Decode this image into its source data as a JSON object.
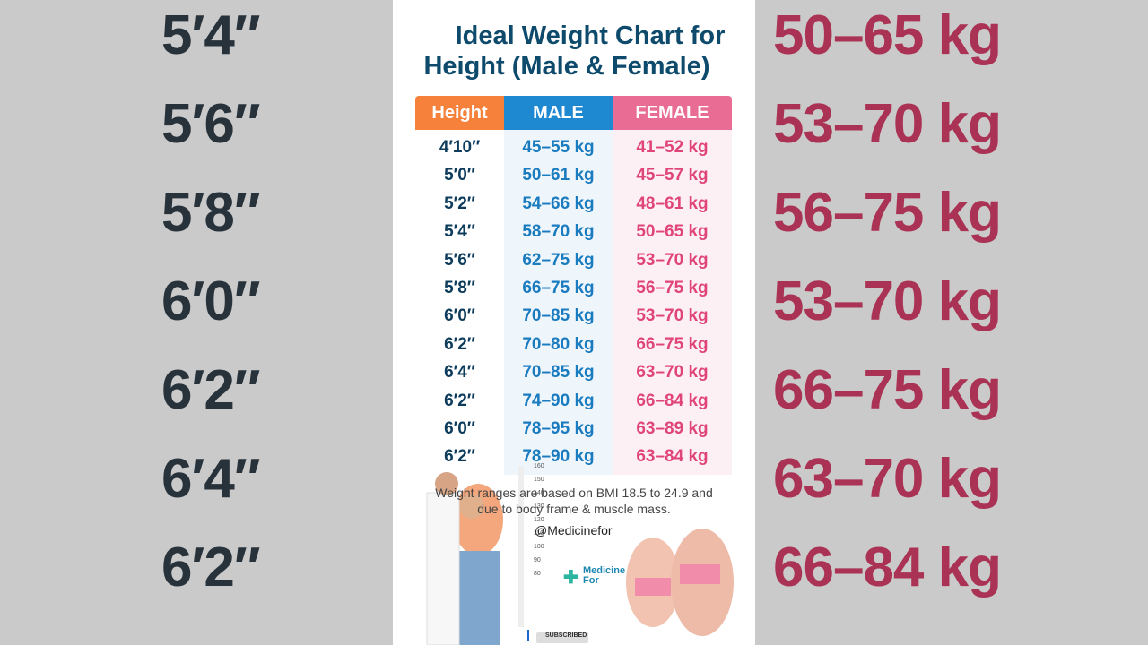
{
  "background": {
    "left": [
      "5′4″",
      "5′6″",
      "5′8″",
      "6′0″",
      "6′2″",
      "6′4″",
      "6′2″"
    ],
    "right": [
      "50–65 kg",
      "53–70 kg",
      "56–75 kg",
      "53–70 kg",
      "66–75 kg",
      "63–70 kg",
      "66–84 kg"
    ]
  },
  "header": {
    "title_line1": "Ideal Weight Chart for",
    "title_line2": "Height (Male & Female)"
  },
  "table": {
    "columns": [
      "Height",
      "MALE",
      "FEMALE"
    ],
    "rows": [
      [
        "4′10″",
        "45–55 kg",
        "41–52 kg"
      ],
      [
        "5′0″",
        "50–61 kg",
        "45–57 kg"
      ],
      [
        "5′2″",
        "54–66 kg",
        "48–61 kg"
      ],
      [
        "5′4″",
        "58–70 kg",
        "50–65 kg"
      ],
      [
        "5′6″",
        "62–75 kg",
        "53–70 kg"
      ],
      [
        "5′8″",
        "66–75 kg",
        "56–75 kg"
      ],
      [
        "6′0″",
        "70–85 kg",
        "53–70 kg"
      ],
      [
        "6′2″",
        "70–80 kg",
        "66–75 kg"
      ],
      [
        "6′4″",
        "70–85 kg",
        "63–70 kg"
      ],
      [
        "6′2″",
        "74–90 kg",
        "66–84 kg"
      ],
      [
        "6′0″",
        "78–95 kg",
        "63–89 kg"
      ],
      [
        "6′2″",
        "78–90 kg",
        "63–84 kg"
      ]
    ]
  },
  "footnote": {
    "line1": "Weight ranges are based on BMI 18.5 to 24.9 and",
    "line2": "due to body frame & muscle mass."
  },
  "ruler": [
    "160",
    "150",
    "140",
    "130",
    "120",
    "110",
    "100",
    "90",
    "80"
  ],
  "handle": "@Medicinefor",
  "logo": {
    "line1": "Medicine",
    "line2": "For"
  },
  "subscribe": "SUBSCRIBED"
}
